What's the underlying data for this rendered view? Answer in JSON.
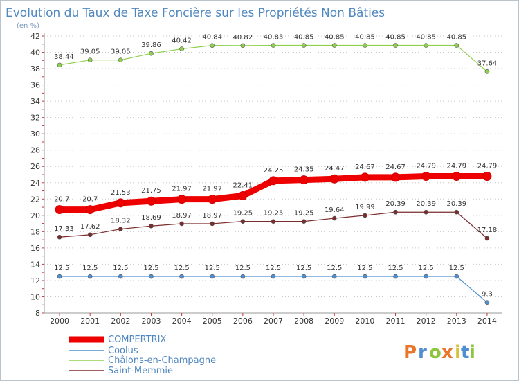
{
  "chart_data": {
    "type": "line",
    "title": "Evolution du Taux de Taxe Foncière sur les Propriétés Non Bâties",
    "subtitle": "(en %)",
    "xlabel": "",
    "ylabel": "",
    "categories": [
      "2000",
      "2001",
      "2002",
      "2003",
      "2004",
      "2005",
      "2006",
      "2007",
      "2008",
      "2009",
      "2010",
      "2011",
      "2012",
      "2013",
      "2014"
    ],
    "ylim": [
      8,
      42
    ],
    "yticks": [
      8,
      10,
      12,
      14,
      16,
      18,
      20,
      22,
      24,
      26,
      28,
      30,
      32,
      34,
      36,
      38,
      40,
      42
    ],
    "grid": "horizontal dotted",
    "legend_position": "bottom-left",
    "series": [
      {
        "name": "COMPERTRIX",
        "color": "#ee0000",
        "values": [
          20.7,
          20.7,
          21.53,
          21.75,
          21.97,
          21.97,
          22.41,
          24.25,
          24.35,
          24.47,
          24.67,
          24.67,
          24.79,
          24.79,
          24.79
        ],
        "labels": [
          "20.7",
          "20.7",
          "21.53",
          "21.75",
          "21.97",
          "21.97",
          "22.41",
          "24.25",
          "24.35",
          "24.47",
          "24.67",
          "24.67",
          "24.79",
          "24.79",
          "24.79"
        ]
      },
      {
        "name": "Coolus",
        "color": "#4f8fcf",
        "values": [
          12.5,
          12.5,
          12.5,
          12.5,
          12.5,
          12.5,
          12.5,
          12.5,
          12.5,
          12.5,
          12.5,
          12.5,
          12.5,
          12.5,
          9.3
        ],
        "labels": [
          "12.5",
          "12.5",
          "12.5",
          "12.5",
          "12.5",
          "12.5",
          "12.5",
          "12.5",
          "12.5",
          "12.5",
          "12.5",
          "12.5",
          "12.5",
          "12.5",
          "9.3"
        ]
      },
      {
        "name": "Châlons-en-Champagne",
        "color": "#8fd14f",
        "values": [
          38.44,
          39.05,
          39.05,
          39.86,
          40.42,
          40.84,
          40.82,
          40.85,
          40.85,
          40.85,
          40.85,
          40.85,
          40.85,
          40.85,
          37.64
        ],
        "labels": [
          "38.44",
          "39.05",
          "39.05",
          "39.86",
          "40.42",
          "40.84",
          "40.82",
          "40.85",
          "40.85",
          "40.85",
          "40.85",
          "40.85",
          "40.85",
          "40.85",
          "37.64"
        ]
      },
      {
        "name": "Saint-Memmie",
        "color": "#7b2c2c",
        "values": [
          17.33,
          17.62,
          18.32,
          18.69,
          18.97,
          18.97,
          19.25,
          19.25,
          19.25,
          19.64,
          19.99,
          20.39,
          20.39,
          20.39,
          17.18
        ],
        "labels": [
          "17.33",
          "17.62",
          "18.32",
          "18.69",
          "18.97",
          "18.97",
          "19.25",
          "19.25",
          "19.25",
          "19.64",
          "19.99",
          "20.39",
          "20.39",
          "20.39",
          "17.18"
        ]
      }
    ]
  },
  "logo": {
    "letters": [
      "P",
      "r",
      "o",
      "x",
      "i",
      "t",
      "i"
    ],
    "colors": [
      "#e8762b",
      "#4f8fcf",
      "#8fc43f",
      "#e8762b",
      "#d9c23a",
      "#4f8fcf",
      "#8fc43f"
    ]
  }
}
